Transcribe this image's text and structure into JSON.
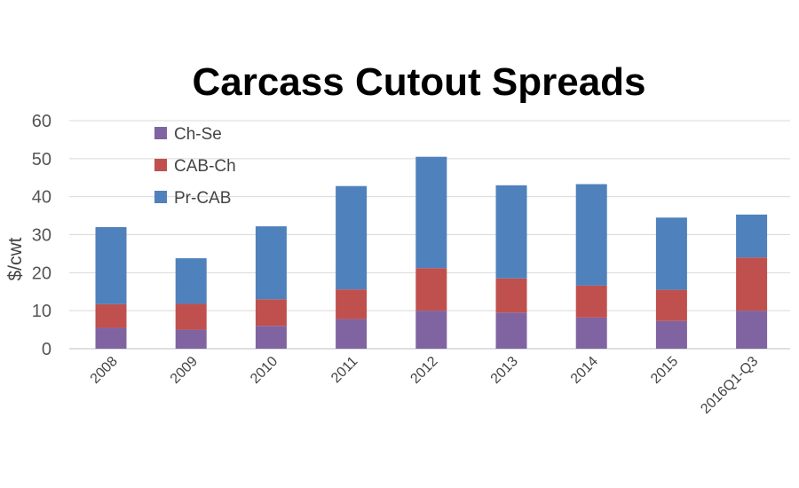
{
  "chart_data": {
    "type": "bar",
    "stacked": true,
    "title": "Carcass Cutout Spreads",
    "xlabel": "",
    "ylabel": "$/cwt",
    "ylim": [
      0,
      60
    ],
    "yticks": [
      0,
      10,
      20,
      30,
      40,
      50,
      60
    ],
    "grid": true,
    "legend_position": "top-left",
    "categories": [
      "2008",
      "2009",
      "2010",
      "2011",
      "2012",
      "2013",
      "2014",
      "2015",
      "2016Q1-Q3"
    ],
    "series": [
      {
        "name": "Ch-Se",
        "color": "#8064a2",
        "values": [
          5.5,
          5.0,
          6.0,
          7.8,
          10.0,
          9.5,
          8.2,
          7.3,
          10.0
        ]
      },
      {
        "name": "CAB-Ch",
        "color": "#c0504d",
        "values": [
          6.2,
          6.8,
          7.0,
          7.8,
          11.2,
          9.0,
          8.4,
          8.2,
          14.0
        ]
      },
      {
        "name": "Pr-CAB",
        "color": "#4f81bd",
        "values": [
          20.3,
          12.0,
          19.2,
          27.2,
          29.3,
          24.5,
          26.7,
          19.0,
          11.3
        ]
      }
    ]
  }
}
